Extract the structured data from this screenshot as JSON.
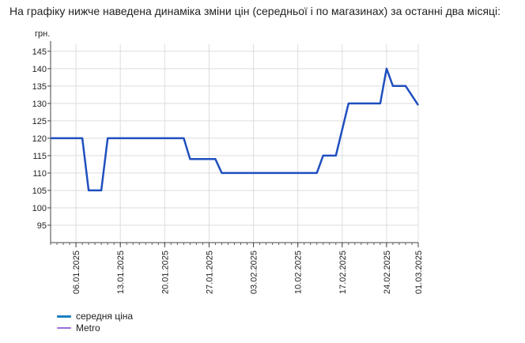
{
  "heading": "На графіку нижче наведена динаміка зміни цін (середньої і по магазинах) за останні два місяці:",
  "chart_data": {
    "type": "line",
    "ylabel": "грн.",
    "ylim": [
      90,
      147
    ],
    "yticks": [
      95,
      100,
      105,
      110,
      115,
      120,
      125,
      130,
      135,
      140,
      145
    ],
    "xlim": [
      "2025-01-02",
      "2025-03-01"
    ],
    "xticks": [
      "06.01.2025",
      "13.01.2025",
      "20.01.2025",
      "27.01.2025",
      "03.02.2025",
      "10.02.2025",
      "17.02.2025",
      "24.02.2025",
      "01.03.2025"
    ],
    "grid": true,
    "legend_position": "bottom-left",
    "series": [
      {
        "name": "середня ціна",
        "color": "#1f4fbf",
        "points": [
          [
            "2025-01-02",
            120
          ],
          [
            "2025-01-07",
            120
          ],
          [
            "2025-01-08",
            105
          ],
          [
            "2025-01-10",
            105
          ],
          [
            "2025-01-11",
            120
          ],
          [
            "2025-01-23",
            120
          ],
          [
            "2025-01-24",
            114
          ],
          [
            "2025-01-28",
            114
          ],
          [
            "2025-01-29",
            110
          ],
          [
            "2025-02-13",
            110
          ],
          [
            "2025-02-14",
            115
          ],
          [
            "2025-02-16",
            115
          ],
          [
            "2025-02-18",
            130
          ],
          [
            "2025-02-23",
            130
          ],
          [
            "2025-02-24",
            140
          ],
          [
            "2025-02-25",
            135
          ],
          [
            "2025-02-27",
            135
          ],
          [
            "2025-03-01",
            129.5
          ]
        ]
      },
      {
        "name": "Metro",
        "color": "#9b6fd6",
        "points": []
      }
    ]
  }
}
